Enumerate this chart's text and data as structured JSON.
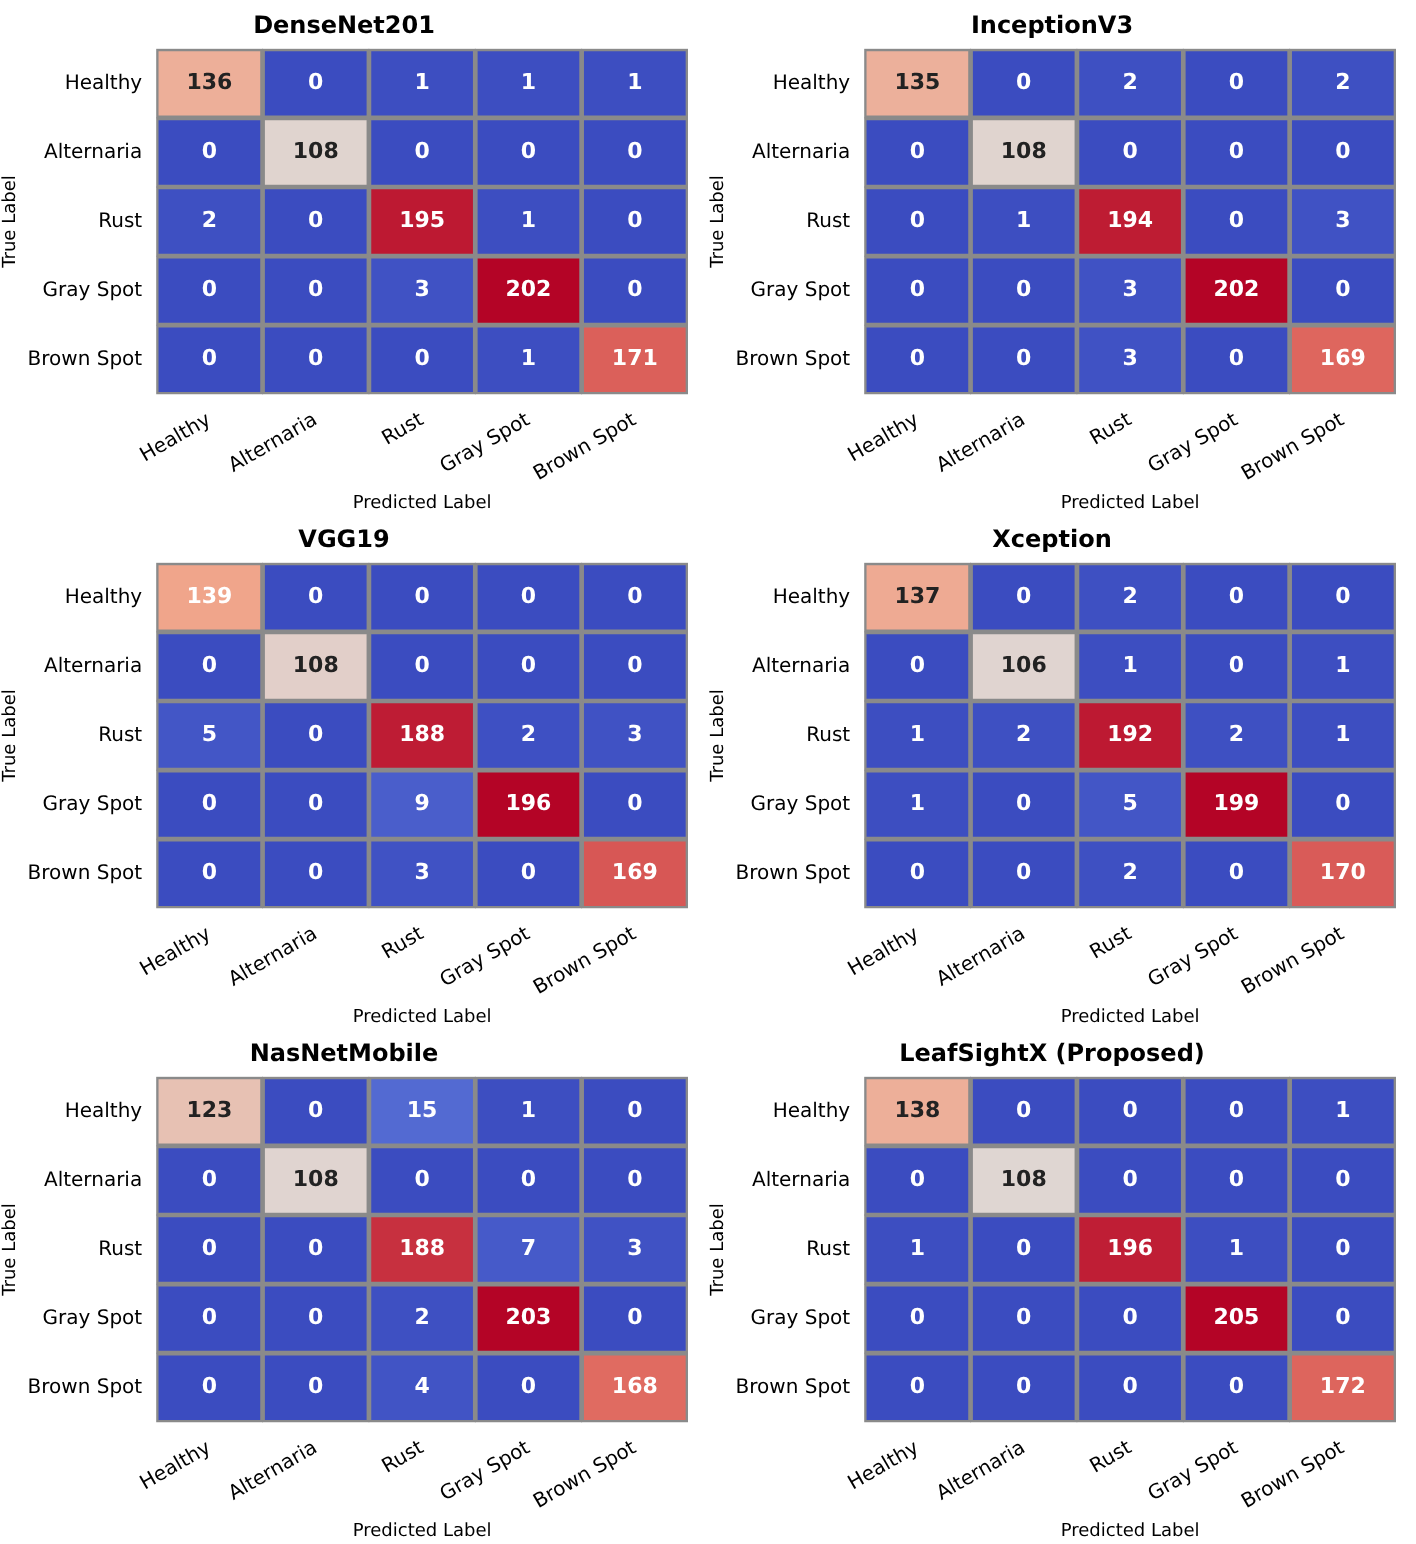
{
  "chart_data": [
    {
      "type": "heatmap",
      "data_labels": true,
      "title": "DenseNet201",
      "xlabel": "Predicted Label",
      "ylabel": "True Label",
      "categories": [
        "Healthy",
        "Alternaria",
        "Rust",
        "Gray Spot",
        "Brown Spot"
      ],
      "y_categories": [
        "Healthy",
        "Alternaria",
        "Rust",
        "Gray Spot",
        "Brown Spot"
      ],
      "cells": [
        [
          136,
          0,
          1,
          1,
          1
        ],
        [
          0,
          108,
          0,
          0,
          0
        ],
        [
          2,
          0,
          195,
          1,
          0
        ],
        [
          0,
          0,
          3,
          202,
          0
        ],
        [
          0,
          0,
          0,
          1,
          171
        ]
      ]
    },
    {
      "type": "heatmap",
      "data_labels": true,
      "title": "InceptionV3",
      "xlabel": "Predicted Label",
      "ylabel": "True Label",
      "categories": [
        "Healthy",
        "Alternaria",
        "Rust",
        "Gray Spot",
        "Brown Spot"
      ],
      "y_categories": [
        "Healthy",
        "Alternaria",
        "Rust",
        "Gray Spot",
        "Brown Spot"
      ],
      "cells": [
        [
          135,
          0,
          2,
          0,
          2
        ],
        [
          0,
          108,
          0,
          0,
          0
        ],
        [
          0,
          1,
          194,
          0,
          3
        ],
        [
          0,
          0,
          3,
          202,
          0
        ],
        [
          0,
          0,
          3,
          0,
          169
        ]
      ]
    },
    {
      "type": "heatmap",
      "data_labels": true,
      "title": "VGG19",
      "xlabel": "Predicted Label",
      "ylabel": "True Label",
      "categories": [
        "Healthy",
        "Alternaria",
        "Rust",
        "Gray Spot",
        "Brown Spot"
      ],
      "y_categories": [
        "Healthy",
        "Alternaria",
        "Rust",
        "Gray Spot",
        "Brown Spot"
      ],
      "cells": [
        [
          139,
          0,
          0,
          0,
          0
        ],
        [
          0,
          108,
          0,
          0,
          0
        ],
        [
          5,
          0,
          188,
          2,
          3
        ],
        [
          0,
          0,
          9,
          196,
          0
        ],
        [
          0,
          0,
          3,
          0,
          169
        ]
      ]
    },
    {
      "type": "heatmap",
      "data_labels": true,
      "title": "Xception",
      "xlabel": "Predicted Label",
      "ylabel": "True Label",
      "categories": [
        "Healthy",
        "Alternaria",
        "Rust",
        "Gray Spot",
        "Brown Spot"
      ],
      "y_categories": [
        "Healthy",
        "Alternaria",
        "Rust",
        "Gray Spot",
        "Brown Spot"
      ],
      "cells": [
        [
          137,
          0,
          2,
          0,
          0
        ],
        [
          0,
          106,
          1,
          0,
          1
        ],
        [
          1,
          2,
          192,
          2,
          1
        ],
        [
          1,
          0,
          5,
          199,
          0
        ],
        [
          0,
          0,
          2,
          0,
          170
        ]
      ]
    },
    {
      "type": "heatmap",
      "data_labels": true,
      "title": "NasNetMobile",
      "xlabel": "Predicted Label",
      "ylabel": "True Label",
      "categories": [
        "Healthy",
        "Alternaria",
        "Rust",
        "Gray Spot",
        "Brown Spot"
      ],
      "y_categories": [
        "Healthy",
        "Alternaria",
        "Rust",
        "Gray Spot",
        "Brown Spot"
      ],
      "cells": [
        [
          123,
          0,
          15,
          1,
          0
        ],
        [
          0,
          108,
          0,
          0,
          0
        ],
        [
          0,
          0,
          188,
          7,
          3
        ],
        [
          0,
          0,
          2,
          203,
          0
        ],
        [
          0,
          0,
          4,
          0,
          168
        ]
      ]
    },
    {
      "type": "heatmap",
      "data_labels": true,
      "title": "LeafSightX (Proposed)",
      "xlabel": "Predicted Label",
      "ylabel": "True Label",
      "categories": [
        "Healthy",
        "Alternaria",
        "Rust",
        "Gray Spot",
        "Brown Spot"
      ],
      "y_categories": [
        "Healthy",
        "Alternaria",
        "Rust",
        "Gray Spot",
        "Brown Spot"
      ],
      "cells": [
        [
          138,
          0,
          0,
          0,
          1
        ],
        [
          0,
          108,
          0,
          0,
          0
        ],
        [
          1,
          0,
          196,
          1,
          0
        ],
        [
          0,
          0,
          0,
          205,
          0
        ],
        [
          0,
          0,
          0,
          0,
          172
        ]
      ]
    }
  ]
}
